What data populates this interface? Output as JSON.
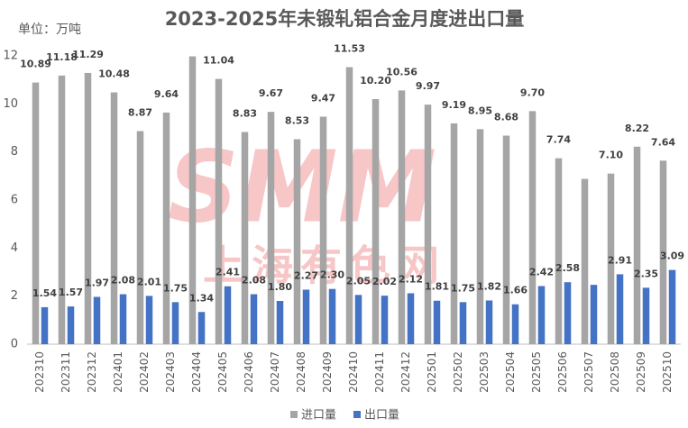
{
  "chart_data": {
    "type": "bar",
    "title": "2023-2025年未锻轧铝合金月度进出口量",
    "subtitle": "单位：万吨",
    "watermark": {
      "logo": "SMM",
      "text": "上海有色网"
    },
    "categories": [
      "202310",
      "202311",
      "202312",
      "202401",
      "202402",
      "202403",
      "202404",
      "202405",
      "202406",
      "202407",
      "202408",
      "202409",
      "202410",
      "202411",
      "202412",
      "202501",
      "202502",
      "202503",
      "202504",
      "202505",
      "202506",
      "202507",
      "202508",
      "202509",
      "202510"
    ],
    "series": [
      {
        "name": "进口量",
        "color": "#a5a5a5",
        "values": [
          10.89,
          11.18,
          11.29,
          10.48,
          8.87,
          9.64,
          11.98,
          11.04,
          8.83,
          9.67,
          8.53,
          9.47,
          11.53,
          10.2,
          10.56,
          9.97,
          9.19,
          8.95,
          8.68,
          9.7,
          7.74,
          6.88,
          7.1,
          8.22,
          7.64
        ],
        "value_labels": [
          "10.89",
          "11.18",
          "11.29",
          "10.48",
          "8.87",
          "9.64",
          null,
          "11.04",
          "8.83",
          "9.67",
          "8.53",
          "9.47",
          "11.53",
          "10.20",
          "10.56",
          "9.97",
          "9.19",
          "8.95",
          "8.68",
          "9.70",
          "7.74",
          null,
          "7.10",
          "8.22",
          "7.64"
        ]
      },
      {
        "name": "出口量",
        "color": "#4472c4",
        "values": [
          1.54,
          1.57,
          1.97,
          2.08,
          2.01,
          1.75,
          1.34,
          2.41,
          2.08,
          1.8,
          2.27,
          2.3,
          2.05,
          2.02,
          2.12,
          1.81,
          1.75,
          1.82,
          1.66,
          2.42,
          2.58,
          2.47,
          2.91,
          2.35,
          3.09
        ],
        "value_labels": [
          "1.54",
          "1.57",
          "1.97",
          "2.08",
          "2.01",
          "1.75",
          "1.34",
          "2.41",
          "2.08",
          "1.80",
          "2.27",
          "2.30",
          "2.05",
          "2.02",
          "2.12",
          "1.81",
          "1.75",
          "1.82",
          "1.66",
          "2.42",
          "2.58",
          null,
          "2.91",
          "2.35",
          "3.09"
        ]
      }
    ],
    "ylim": [
      0,
      12
    ],
    "yticks": [
      0,
      2,
      4,
      6,
      8,
      10,
      12
    ],
    "grid": false,
    "legend": "bottom"
  }
}
